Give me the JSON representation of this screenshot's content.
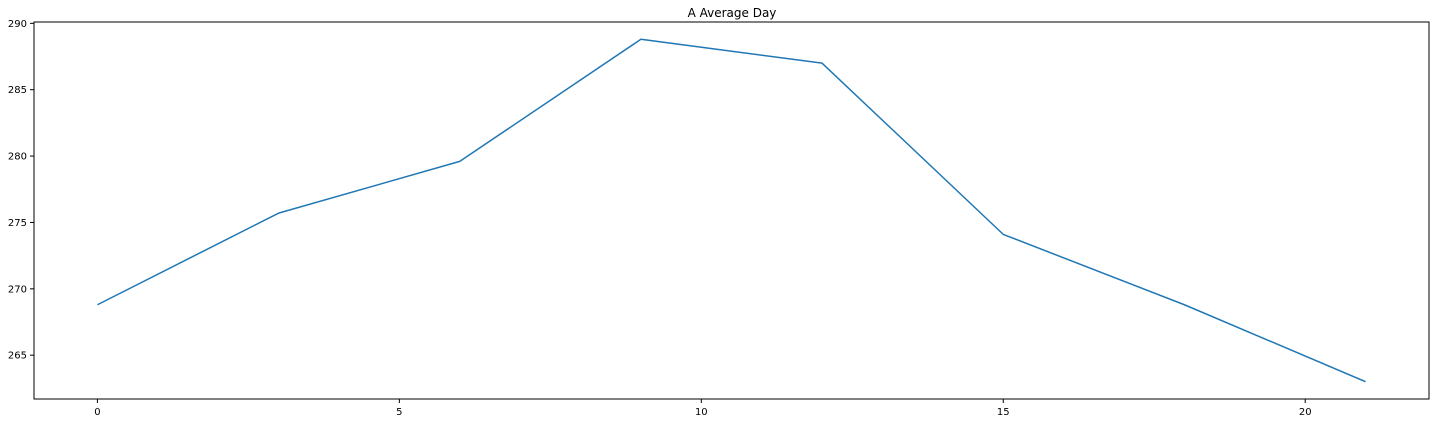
{
  "chart_data": {
    "type": "line",
    "title": "A Average Day",
    "xlabel": "",
    "ylabel": "",
    "x": [
      0,
      3,
      6,
      9,
      12,
      15,
      18,
      21
    ],
    "series": [
      {
        "values": [
          268.8,
          275.7,
          279.6,
          288.8,
          287.0,
          274.1,
          268.8,
          263.0
        ],
        "color": "#1f77b4"
      }
    ],
    "xlim": [
      -1.05,
      22.05
    ],
    "ylim": [
      261.7,
      290.1
    ],
    "xticks": [
      0,
      5,
      10,
      15,
      20
    ],
    "yticks": [
      265,
      270,
      275,
      280,
      285,
      290
    ],
    "grid": false,
    "legend": "none"
  }
}
